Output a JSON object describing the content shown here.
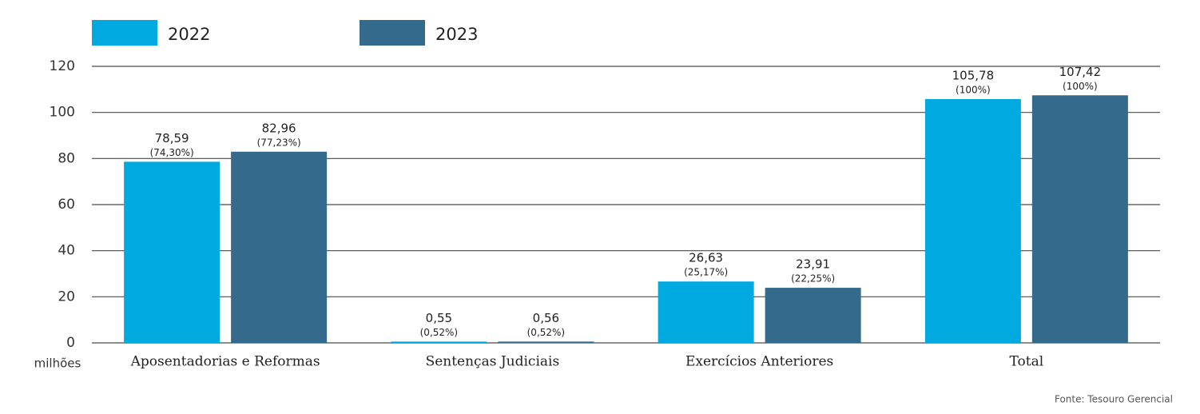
{
  "chart_data": {
    "type": "bar",
    "categories": [
      "Aposentadorias e Reformas",
      "Sentenças Judiciais",
      "Exercícios Anteriores",
      "Total"
    ],
    "series": [
      {
        "name": "2022",
        "color": "#00a9e0",
        "values": [
          78.59,
          0.55,
          26.63,
          105.78
        ],
        "value_labels": [
          "78,59",
          "0,55",
          "26,63",
          "105,78"
        ],
        "percent_labels": [
          "(74,30%)",
          "(0,52%)",
          "(25,17%)",
          "(100%)"
        ]
      },
      {
        "name": "2023",
        "color": "#346a8c",
        "values": [
          82.96,
          0.56,
          23.91,
          107.42
        ],
        "value_labels": [
          "82,96",
          "0,56",
          "23,91",
          "107,42"
        ],
        "percent_labels": [
          "(77,23%)",
          "(0,52%)",
          "(22,25%)",
          "(100%)"
        ]
      }
    ],
    "ylim": [
      0,
      120
    ],
    "yticks": [
      0,
      20,
      40,
      60,
      80,
      100,
      120
    ],
    "grid": true,
    "y_unit": "milhões",
    "source": "Fonte: Tesouro Gerencial"
  }
}
